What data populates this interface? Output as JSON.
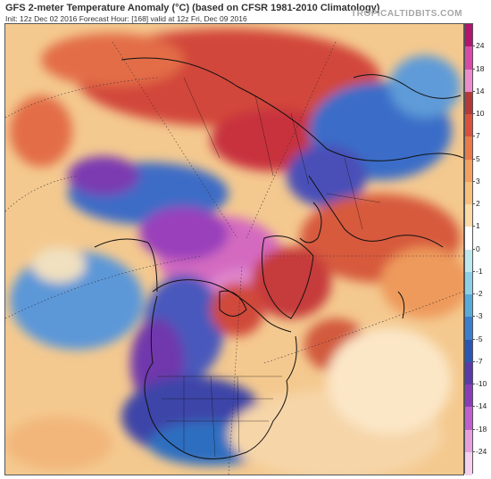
{
  "header": {
    "title": "GFS 2-meter Temperature Anomaly (°C) (based on CFSR 1981-2010 Climatology)",
    "subtitle": "Init: 12z Dec 02 2016   Forecast Hour: [168]   valid at 12z Fri, Dec 09 2016",
    "watermark": "TROPICALTIDBITS.COM"
  },
  "colorbar": {
    "labels": [
      "24",
      "18",
      "14",
      "10",
      "7",
      "5",
      "3",
      "2",
      "1",
      "0",
      "-1",
      "-2",
      "-3",
      "-5",
      "-7",
      "-10",
      "-14",
      "-18",
      "-24"
    ],
    "colors": [
      "#b1156f",
      "#d94aa8",
      "#ec8ccc",
      "#b43a3a",
      "#d9513c",
      "#ea7a4a",
      "#f3a060",
      "#f7c07c",
      "#fbdba6",
      "#ffffff",
      "#bfe8ee",
      "#8dd0e6",
      "#5aaad8",
      "#3b7fcc",
      "#2a57b3",
      "#5b3aa9",
      "#8a3db8",
      "#c060cc",
      "#e6a0e0",
      "#f6d0ef"
    ]
  },
  "map": {
    "colors": {
      "background": "#f3c88e",
      "warm_strong": "#c23b2e",
      "warm": "#e4683f",
      "cold": "#3466c6",
      "cold_strong": "#5b2fa0",
      "extreme_cold": "#8d3ab6",
      "extreme_warm": "#d860b8",
      "coastline": "#111111"
    }
  }
}
